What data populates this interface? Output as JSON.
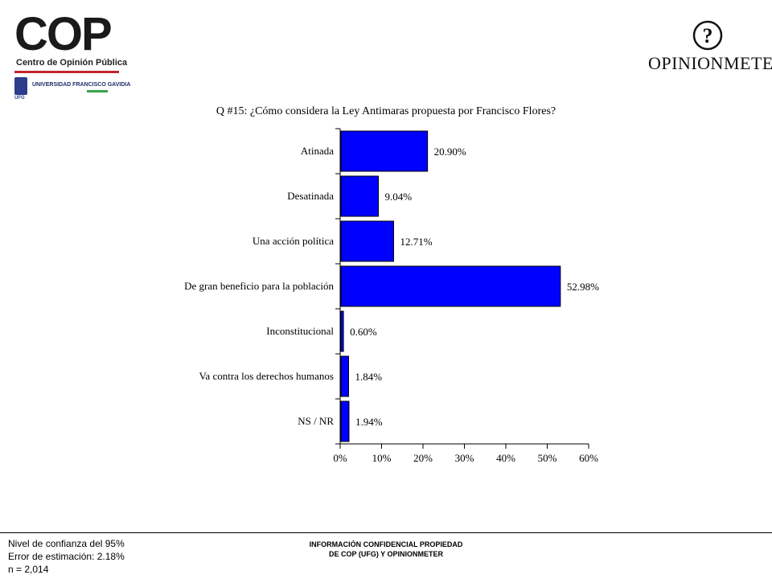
{
  "header": {
    "cop_logo_text": "COP",
    "cop_subtitle": "Centro de Opinión Pública",
    "university": "UNIVERSIDAD FRANCISCO GAVIDIA",
    "university_tag": "UFG",
    "opinionmeter_logo_text": "OPINIONMETER",
    "opinionmeter_icon": "question-circle-icon"
  },
  "chart_data": {
    "type": "bar",
    "orientation": "horizontal",
    "title": "Q #15: ¿Cómo considera la Ley Antimaras propuesta por Francisco Flores?",
    "categories": [
      "Atinada",
      "Desatinada",
      "Una acción política",
      "De gran beneficio para la población",
      "Inconstitucional",
      "Va contra los derechos humanos",
      "NS / NR"
    ],
    "values": [
      20.9,
      9.04,
      12.71,
      52.98,
      0.6,
      1.84,
      1.94
    ],
    "value_labels": [
      "20.90%",
      "9.04%",
      "12.71%",
      "52.98%",
      "0.60%",
      "1.84%",
      "1.94%"
    ],
    "xlim": [
      0,
      60
    ],
    "x_ticks": [
      "0%",
      "10%",
      "20%",
      "30%",
      "40%",
      "50%",
      "60%"
    ],
    "bar_color": "#0000ff",
    "grid": false
  },
  "footer": {
    "left_lines": [
      "Nivel de confianza del 95%",
      "Error de estimación: 2.18%",
      "n = 2,014"
    ],
    "center_lines": [
      "INFORMACIÓN CONFIDENCIAL PROPIEDAD",
      "DE COP (UFG) Y OPINIONMETER"
    ]
  }
}
